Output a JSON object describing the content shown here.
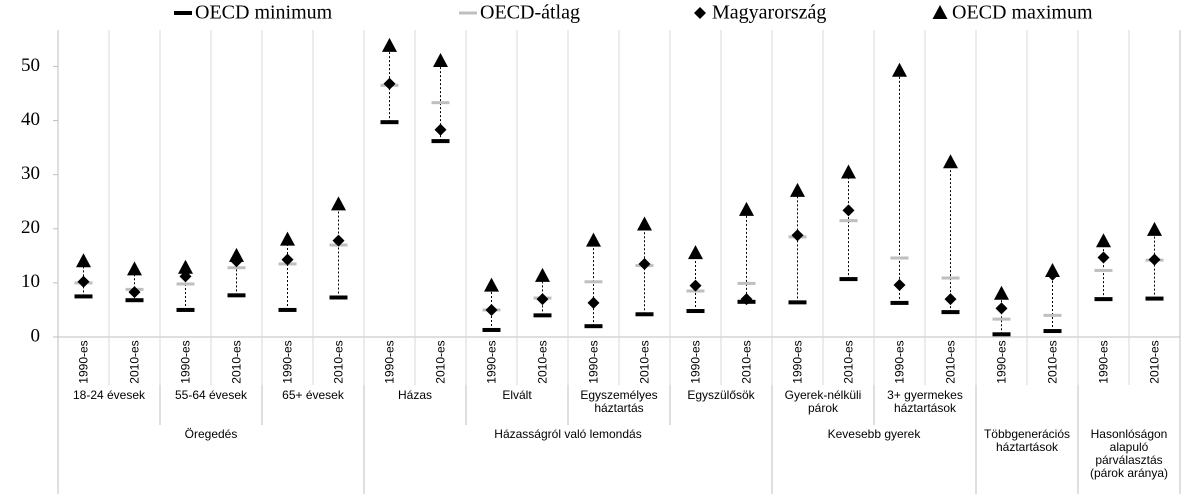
{
  "chart_data": {
    "type": "range-dot",
    "categories": [
      "1990-es",
      "2010-es",
      "1990-es",
      "2010-es",
      "1990-es",
      "2010-es",
      "1990-es",
      "2010-es",
      "1990-es",
      "2010-es",
      "1990-es",
      "2010-es",
      "1990-es",
      "2010-es",
      "1990-es",
      "2010-es",
      "1990-es",
      "2010-es",
      "1990-es",
      "2010-es",
      "1990-es",
      "2010-es"
    ],
    "groups": [
      {
        "name": "Öregedés",
        "subgroups": [
          "18-24 évesek",
          "55-64 évesek",
          "65+ évesek"
        ]
      },
      {
        "name": "Házasságról való lemondás",
        "subgroups": [
          "Házas",
          "Elvált",
          "Egyszemélyes háztartás",
          "Egyszülősök"
        ]
      },
      {
        "name": "Kevesebb gyerek",
        "subgroups": [
          "Gyerek-nélküli párok",
          "3+ gyermekes háztartások"
        ]
      },
      {
        "name": "Többgenerációs háztartások",
        "subgroups": [
          ""
        ]
      },
      {
        "name": "Hasonlóságon alapuló párválasztás (párok aránya)",
        "subgroups": [
          ""
        ]
      }
    ],
    "series": [
      {
        "name": "OECD minimum",
        "color": "#000000",
        "marker": "dash",
        "values": [
          7.5,
          6.8,
          5,
          7.7,
          5,
          7.3,
          39.7,
          36.2,
          1.3,
          4,
          2,
          4.2,
          4.8,
          6.5,
          6.4,
          10.7,
          6.3,
          4.6,
          0.5,
          1.1,
          7,
          7.1
        ]
      },
      {
        "name": "OECD-átlag",
        "color": "#bfbfbf",
        "marker": "dash",
        "values": [
          10,
          8.8,
          9.8,
          12.8,
          13.5,
          17,
          46.5,
          43.3,
          5,
          7.2,
          10.2,
          13.2,
          8.5,
          9.9,
          18.5,
          21.5,
          14.6,
          10.9,
          3.3,
          4,
          12.3,
          14.2
        ]
      },
      {
        "name": "Magyarország",
        "color": "#000000",
        "marker": "diamond",
        "values": [
          10.2,
          8.3,
          11.2,
          14,
          14.3,
          17.8,
          46.8,
          38.3,
          5,
          7,
          6.3,
          13.5,
          9.5,
          7,
          18.8,
          23.4,
          9.6,
          7,
          5.3,
          11.5,
          14.7,
          14.3
        ]
      },
      {
        "name": "OECD maximum",
        "color": "#000000",
        "marker": "triangle",
        "values": [
          14,
          12.5,
          12.8,
          15,
          18,
          24.5,
          53.8,
          51,
          9.5,
          11.3,
          17.8,
          20.8,
          15.5,
          23.5,
          27,
          30.4,
          49.2,
          32.3,
          8,
          12.2,
          17.7,
          19.8
        ]
      }
    ],
    "ylim": [
      0,
      52
    ],
    "yticks": [
      0,
      10,
      20,
      30,
      40,
      50
    ]
  }
}
